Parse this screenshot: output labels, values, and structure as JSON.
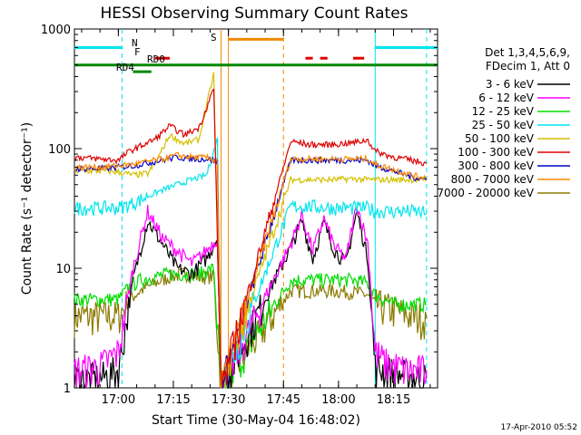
{
  "chart_data": {
    "type": "line",
    "title": "HESSI Observing Summary Count Rates",
    "xlabel": "Start Time (30-May-04 16:48:02)",
    "ylabel": "Count Rate (s⁻¹ detector⁻¹)",
    "yscale": "log",
    "ylim": [
      1,
      1000
    ],
    "xlim": [
      "16:48",
      "18:27"
    ],
    "y_ticks": [
      "1",
      "10",
      "100",
      "1000"
    ],
    "x_ticks": [
      "17:00",
      "17:15",
      "17:30",
      "17:45",
      "18:00",
      "18:15"
    ],
    "legend_header": [
      "Det 1,3,4,5,6,9,",
      "FDecim 1, Att 0"
    ],
    "legend_position": "right",
    "footer_date": "17-Apr-2010 05:52",
    "flag_labels": {
      "N": "N",
      "F": "F",
      "S": "S",
      "RD0": "RD0",
      "RD4": "RD4"
    },
    "flags": [
      {
        "label": "N",
        "color": "#00e5ee",
        "y": 700,
        "segments": [
          [
            "16:48",
            "17:01"
          ],
          [
            "18:10",
            "18:27"
          ]
        ]
      },
      {
        "label": "F",
        "color": "#e00000",
        "y": 570,
        "segments": [
          [
            "17:10",
            "17:14"
          ],
          [
            "17:51",
            "17:53"
          ],
          [
            "17:55",
            "17:57"
          ],
          [
            "18:04",
            "18:07"
          ]
        ]
      },
      {
        "label": "RD0",
        "color": "#008800",
        "y": 500,
        "segments": [
          [
            "16:48",
            "18:27"
          ]
        ]
      },
      {
        "label": "RD4",
        "color": "#008800",
        "y": 440,
        "segments": [
          [
            "17:04",
            "17:09"
          ]
        ]
      },
      {
        "label": "S",
        "color": "#f08a00",
        "y": 820,
        "segments": [
          [
            "17:30",
            "17:45"
          ]
        ]
      }
    ],
    "markers": [
      {
        "time": "17:01",
        "color": "#00e5ee",
        "style": "dashed"
      },
      {
        "time": "17:28",
        "color": "#f08a00",
        "style": "solid"
      },
      {
        "time": "17:30",
        "color": "#f08a00",
        "style": "solid"
      },
      {
        "time": "17:45",
        "color": "#f08a00",
        "style": "dashed"
      },
      {
        "time": "18:10",
        "color": "#00e5ee",
        "style": "solid"
      },
      {
        "time": "18:24",
        "color": "#00e5ee",
        "style": "dashed"
      }
    ],
    "series": [
      {
        "name": "3 - 6 keV",
        "color": "#000000",
        "x": [
          "16:48",
          "16:55",
          "17:00",
          "17:04",
          "17:08",
          "17:12",
          "17:16",
          "17:20",
          "17:24",
          "17:27",
          "17:28",
          "17:47",
          "17:50",
          "17:53",
          "17:56",
          "17:59",
          "18:02",
          "18:05",
          "18:08",
          "18:10",
          "18:13",
          "18:16",
          "18:19",
          "18:22",
          "18:24"
        ],
        "values": [
          1.2,
          1.2,
          1.4,
          8,
          25,
          16,
          10,
          9,
          12,
          18,
          1,
          15,
          25,
          12,
          24,
          14,
          11,
          30,
          12,
          1.5,
          1.4,
          1.3,
          1.3,
          1.2,
          1.2
        ]
      },
      {
        "name": "6 - 12 keV",
        "color": "#ff00ff",
        "x": [
          "16:48",
          "16:55",
          "17:00",
          "17:04",
          "17:08",
          "17:12",
          "17:16",
          "17:20",
          "17:24",
          "17:27",
          "17:28",
          "17:47",
          "17:50",
          "17:53",
          "17:56",
          "17:59",
          "18:02",
          "18:05",
          "18:08",
          "18:10",
          "18:13",
          "18:16",
          "18:19",
          "18:22",
          "18:24"
        ],
        "values": [
          1.4,
          1.5,
          2,
          10,
          30,
          18,
          14,
          11,
          14,
          18,
          1,
          16,
          28,
          14,
          26,
          15,
          12,
          34,
          16,
          2,
          1.6,
          1.5,
          1.4,
          1.4,
          1.4
        ]
      },
      {
        "name": "12 - 25 keV",
        "color": "#00dd00",
        "x": [
          "16:48",
          "16:55",
          "17:00",
          "17:03",
          "17:06",
          "17:10",
          "17:14",
          "17:18",
          "17:22",
          "17:26",
          "17:28",
          "17:47",
          "17:52",
          "17:58",
          "18:04",
          "18:08",
          "18:10",
          "18:15",
          "18:20",
          "18:24"
        ],
        "values": [
          5.5,
          5.5,
          5.5,
          7,
          8,
          8.5,
          9,
          9,
          9,
          10,
          1,
          8,
          8,
          8,
          8,
          7.5,
          6,
          5,
          5,
          5
        ]
      },
      {
        "name": "25 - 50 keV",
        "color": "#00e5ee",
        "x": [
          "16:48",
          "16:55",
          "17:00",
          "17:04",
          "17:08",
          "17:12",
          "17:16",
          "17:20",
          "17:24",
          "17:27",
          "17:28",
          "17:47",
          "17:52",
          "17:58",
          "18:04",
          "18:08",
          "18:10",
          "18:15",
          "18:20",
          "18:24"
        ],
        "values": [
          32,
          32,
          32,
          35,
          40,
          45,
          50,
          55,
          60,
          120,
          1,
          33,
          33,
          32,
          32,
          32,
          30,
          30,
          30,
          29
        ]
      },
      {
        "name": "50 - 100 keV",
        "color": "#d4c000",
        "x": [
          "16:48",
          "16:55",
          "17:00",
          "17:04",
          "17:08",
          "17:10",
          "17:14",
          "17:18",
          "17:22",
          "17:26",
          "17:28",
          "17:47",
          "17:52",
          "17:58",
          "18:04",
          "18:08",
          "18:10",
          "18:15",
          "18:20",
          "18:24"
        ],
        "values": [
          65,
          65,
          64,
          60,
          62,
          75,
          130,
          110,
          120,
          420,
          1,
          55,
          55,
          55,
          56,
          55,
          55,
          55,
          55,
          55
        ]
      },
      {
        "name": "100 - 300 keV",
        "color": "#dd0000",
        "x": [
          "16:48",
          "16:55",
          "17:00",
          "17:03",
          "17:06",
          "17:10",
          "17:14",
          "17:18",
          "17:22",
          "17:26",
          "17:28",
          "17:47",
          "17:52",
          "17:58",
          "18:04",
          "18:08",
          "18:10",
          "18:15",
          "18:20",
          "18:24"
        ],
        "values": [
          85,
          82,
          80,
          95,
          105,
          120,
          155,
          130,
          150,
          320,
          1,
          115,
          108,
          108,
          112,
          118,
          95,
          85,
          80,
          75
        ]
      },
      {
        "name": "300 - 800 keV",
        "color": "#0000cc",
        "x": [
          "16:48",
          "16:55",
          "17:00",
          "17:04",
          "17:08",
          "17:12",
          "17:16",
          "17:20",
          "17:24",
          "17:27",
          "17:28",
          "17:47",
          "17:52",
          "17:58",
          "18:04",
          "18:08",
          "18:10",
          "18:15",
          "18:20",
          "18:24"
        ],
        "values": [
          68,
          68,
          70,
          72,
          76,
          80,
          85,
          82,
          82,
          78,
          1,
          80,
          80,
          80,
          80,
          80,
          72,
          65,
          58,
          55
        ]
      },
      {
        "name": "800 - 7000 keV",
        "color": "#ff8800",
        "x": [
          "16:48",
          "16:55",
          "17:00",
          "17:04",
          "17:08",
          "17:12",
          "17:16",
          "17:20",
          "17:24",
          "17:27",
          "17:28",
          "17:47",
          "17:52",
          "17:58",
          "18:04",
          "18:08",
          "18:10",
          "18:15",
          "18:20",
          "18:24"
        ],
        "values": [
          70,
          70,
          72,
          74,
          78,
          82,
          88,
          85,
          84,
          80,
          1,
          82,
          82,
          82,
          82,
          82,
          74,
          67,
          60,
          57
        ]
      },
      {
        "name": "7000 - 20000 keV",
        "color": "#8b7a00",
        "x": [
          "16:48",
          "16:55",
          "17:00",
          "17:03",
          "17:06",
          "17:10",
          "17:14",
          "17:18",
          "17:22",
          "17:26",
          "17:28",
          "17:47",
          "17:52",
          "17:58",
          "18:04",
          "18:08",
          "18:10",
          "18:15",
          "18:20",
          "18:24"
        ],
        "values": [
          4,
          4,
          4,
          5.5,
          6.5,
          7.5,
          8.5,
          9,
          8.5,
          8.5,
          1,
          6.5,
          6.5,
          6.5,
          6.3,
          6,
          5,
          4.5,
          4,
          3.8
        ]
      }
    ]
  }
}
